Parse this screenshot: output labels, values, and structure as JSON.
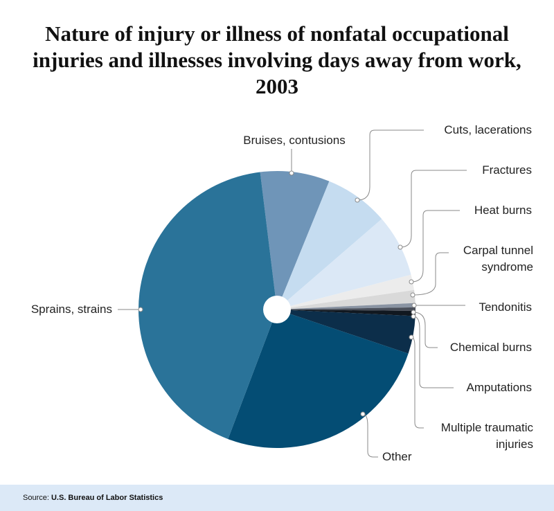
{
  "chart_data": {
    "type": "pie",
    "title": "Nature of injury or illness of nonfatal occupational injuries and illnesses involving days away from work, 2003",
    "categories": [
      "Bruises, contusions",
      "Cuts, lacerations",
      "Fractures",
      "Heat burns",
      "Carpal tunnel syndrome",
      "Tendonitis",
      "Chemical burns",
      "Amputations",
      "Multiple traumatic injuries",
      "Other",
      "Sprains, strains"
    ],
    "values": [
      8.1,
      7.5,
      7.3,
      1.8,
      1.5,
      0.5,
      0.4,
      0.6,
      4.4,
      25.6,
      42.3
    ],
    "colors": [
      "#6f95b8",
      "#c5dcf0",
      "#dbe8f6",
      "#ececec",
      "#d9d9d9",
      "#8a94a3",
      "#4a4f5a",
      "#111820",
      "#0c2e4a",
      "#044d74",
      "#2a7399"
    ],
    "source": {
      "label": "Source:",
      "text": "U.S. Bureau of Labor Statistics"
    }
  }
}
